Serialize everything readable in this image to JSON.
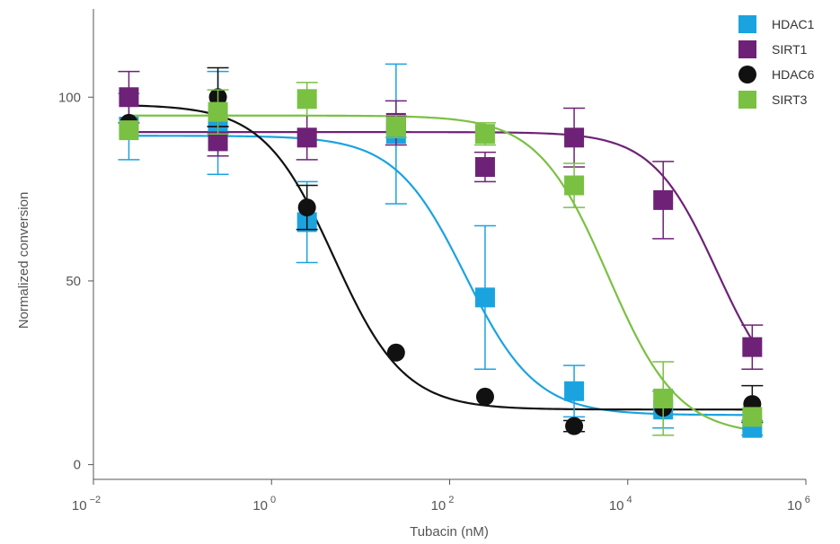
{
  "chart_data": {
    "type": "scatter",
    "title": "",
    "xlabel": "Tubacin (nM)",
    "ylabel": "Normalized conversion",
    "x_scale": "log",
    "xlim": [
      0.01,
      1000000
    ],
    "ylim": [
      -4,
      124
    ],
    "x_ticks": [
      {
        "base": "10",
        "exp": "−2",
        "value": 0.01
      },
      {
        "base": "10",
        "exp": "0",
        "value": 1
      },
      {
        "base": "10",
        "exp": "2",
        "value": 100
      },
      {
        "base": "10",
        "exp": "4",
        "value": 10000
      },
      {
        "base": "10",
        "exp": "6",
        "value": 1000000
      }
    ],
    "y_ticks": [
      {
        "label": "0",
        "value": 0
      },
      {
        "label": "50",
        "value": 50
      },
      {
        "label": "100",
        "value": 100
      }
    ],
    "grid": false,
    "legend_position": "top-right",
    "series": [
      {
        "name": "HDAC1",
        "color": "#1ba3e0",
        "marker": "square",
        "points": [
          {
            "x": 0.025,
            "y": 92,
            "err": 9
          },
          {
            "x": 0.25,
            "y": 93,
            "err": 14
          },
          {
            "x": 2.5,
            "y": 66,
            "err": 11
          },
          {
            "x": 25,
            "y": 90,
            "err": 19
          },
          {
            "x": 250,
            "y": 45.5,
            "err": 19.5
          },
          {
            "x": 2500,
            "y": 20,
            "err": 7
          },
          {
            "x": 25000,
            "y": 15,
            "err": 5
          },
          {
            "x": 250000,
            "y": 10,
            "err": 2
          }
        ],
        "fit": {
          "bottom": 13.5,
          "top": 89.5,
          "ec50": 150,
          "hill": 1.1
        }
      },
      {
        "name": "SIRT1",
        "color": "#6e2277",
        "marker": "square",
        "points": [
          {
            "x": 0.025,
            "y": 100,
            "err": 7
          },
          {
            "x": 0.25,
            "y": 88,
            "err": 4
          },
          {
            "x": 2.5,
            "y": 89,
            "err": 6
          },
          {
            "x": 25,
            "y": 93,
            "err": 6
          },
          {
            "x": 250,
            "y": 81,
            "err": 4
          },
          {
            "x": 2500,
            "y": 89,
            "err": 8
          },
          {
            "x": 25000,
            "y": 72,
            "err": 10.5
          },
          {
            "x": 250000,
            "y": 32,
            "err": 6
          }
        ],
        "fit": {
          "bottom": 15,
          "top": 90.5,
          "ec50": 100000,
          "hill": 1.2
        }
      },
      {
        "name": "HDAC6",
        "color": "#111111",
        "marker": "circle",
        "points": [
          {
            "x": 0.025,
            "y": 93,
            "err": 0
          },
          {
            "x": 0.25,
            "y": 100,
            "err": 8
          },
          {
            "x": 2.5,
            "y": 70,
            "err": 6
          },
          {
            "x": 25,
            "y": 30.5,
            "err": 0
          },
          {
            "x": 250,
            "y": 18.5,
            "err": 0
          },
          {
            "x": 2500,
            "y": 10.5,
            "err": 1.5
          },
          {
            "x": 25000,
            "y": 15.5,
            "err": 0
          },
          {
            "x": 250000,
            "y": 16.5,
            "err": 5
          }
        ],
        "fit": {
          "bottom": 15,
          "top": 98,
          "ec50": 5,
          "hill": 1.1
        }
      },
      {
        "name": "SIRT3",
        "color": "#7ac143",
        "marker": "square",
        "points": [
          {
            "x": 0.025,
            "y": 91,
            "err": 0
          },
          {
            "x": 0.25,
            "y": 96,
            "err": 6
          },
          {
            "x": 2.5,
            "y": 99.5,
            "err": 4.5
          },
          {
            "x": 25,
            "y": 92,
            "err": 3
          },
          {
            "x": 250,
            "y": 90,
            "err": 3
          },
          {
            "x": 2500,
            "y": 76,
            "err": 6
          },
          {
            "x": 25000,
            "y": 18,
            "err": 10
          },
          {
            "x": 250000,
            "y": 13,
            "err": 0
          }
        ],
        "fit": {
          "bottom": 8,
          "top": 95,
          "ec50": 6000,
          "hill": 1.1
        }
      }
    ]
  }
}
